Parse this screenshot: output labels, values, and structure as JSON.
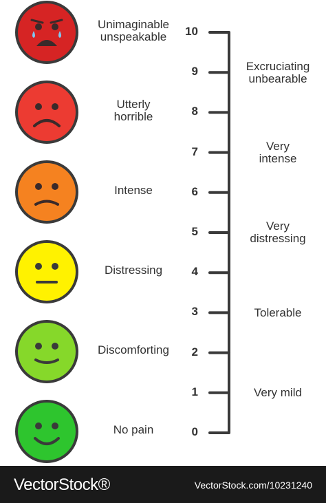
{
  "faces": [
    {
      "label": "Unimaginable\nunspeakable",
      "color": "#d62424",
      "expression": "crying"
    },
    {
      "label": "Utterly\nhorrible",
      "color": "#ec3b32",
      "expression": "frown"
    },
    {
      "label": "Intense",
      "color": "#f58220",
      "expression": "slight-frown"
    },
    {
      "label": "Distressing",
      "color": "#fff200",
      "expression": "neutral"
    },
    {
      "label": "Discomforting",
      "color": "#86d82a",
      "expression": "slight-smile"
    },
    {
      "label": "No pain",
      "color": "#2ec52e",
      "expression": "smile"
    }
  ],
  "scale": {
    "ticks": [
      "10",
      "9",
      "8",
      "7",
      "6",
      "5",
      "4",
      "3",
      "2",
      "1",
      "0"
    ],
    "descriptors": [
      "Excruciating\nunbearable",
      "Very\nintense",
      "Very\ndistressing",
      "Tolerable",
      "Very mild"
    ]
  },
  "colors": {
    "outline": "#3a3a3a",
    "text": "#333333",
    "footer_bg": "#1a1a1a"
  },
  "footer": {
    "brand": "VectorStock®",
    "image_id": "VectorStock.com/10231240"
  }
}
